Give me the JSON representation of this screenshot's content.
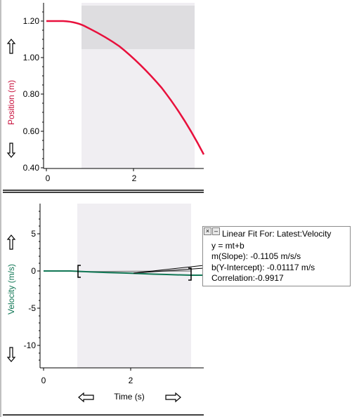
{
  "graphs": {
    "position": {
      "ylabel": "Position (m)",
      "ylabel_color": "#c8103c",
      "yticks": [
        "1.20",
        "1.00",
        "0.80",
        "0.60",
        "0.40"
      ],
      "xticks": [
        "0",
        "2"
      ],
      "curve_color": "#e8103c"
    },
    "velocity": {
      "ylabel": "Velocity (m/s)",
      "ylabel_color": "#117755",
      "yticks": [
        "5",
        "0",
        "-5",
        "-10"
      ],
      "xticks": [
        "0",
        "2"
      ],
      "xlabel": "Time (s)",
      "curve_color": "#117755"
    }
  },
  "fit_box": {
    "close_glyph": "×",
    "min_glyph": "–",
    "title": "Linear Fit For:  Latest:Velocity",
    "equation": "y = mt+b",
    "slope": "m(Slope): -0.1105 m/s/s",
    "intercept": "b(Y-Intercept): -0.01117 m/s",
    "correlation": "Correlation:-0.9917"
  },
  "icons": {
    "scroll_up": "up-arrow-icon",
    "scroll_down": "down-arrow-icon",
    "scroll_left": "left-arrow-icon",
    "scroll_right": "right-arrow-icon"
  }
}
